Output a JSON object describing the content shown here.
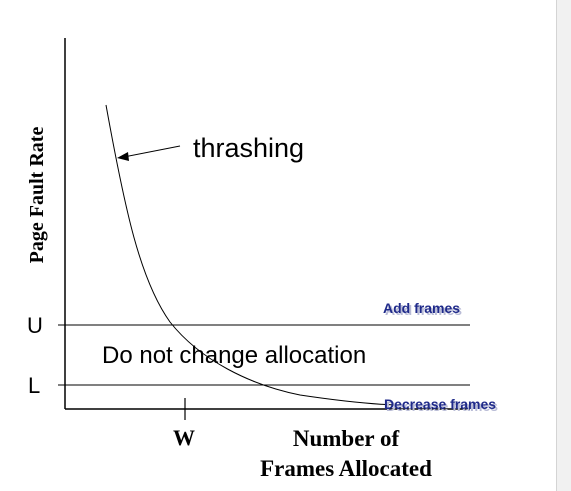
{
  "diagram": {
    "y_axis_label": "Page Fault Rate",
    "x_axis_label_line1": "Number of",
    "x_axis_label_line2": "Frames Allocated",
    "upper_threshold_label": "U",
    "lower_threshold_label": "L",
    "w_label": "W",
    "thrashing_label": "thrashing",
    "add_frames_label": "Add frames",
    "middle_label": "Do not change allocation",
    "decrease_frames_label": "Decrease frames"
  },
  "colors": {
    "axis": "#000000",
    "annotation_blue": "#1f2a8a",
    "annotation_blue_shadow": "#b9bcd6"
  }
}
